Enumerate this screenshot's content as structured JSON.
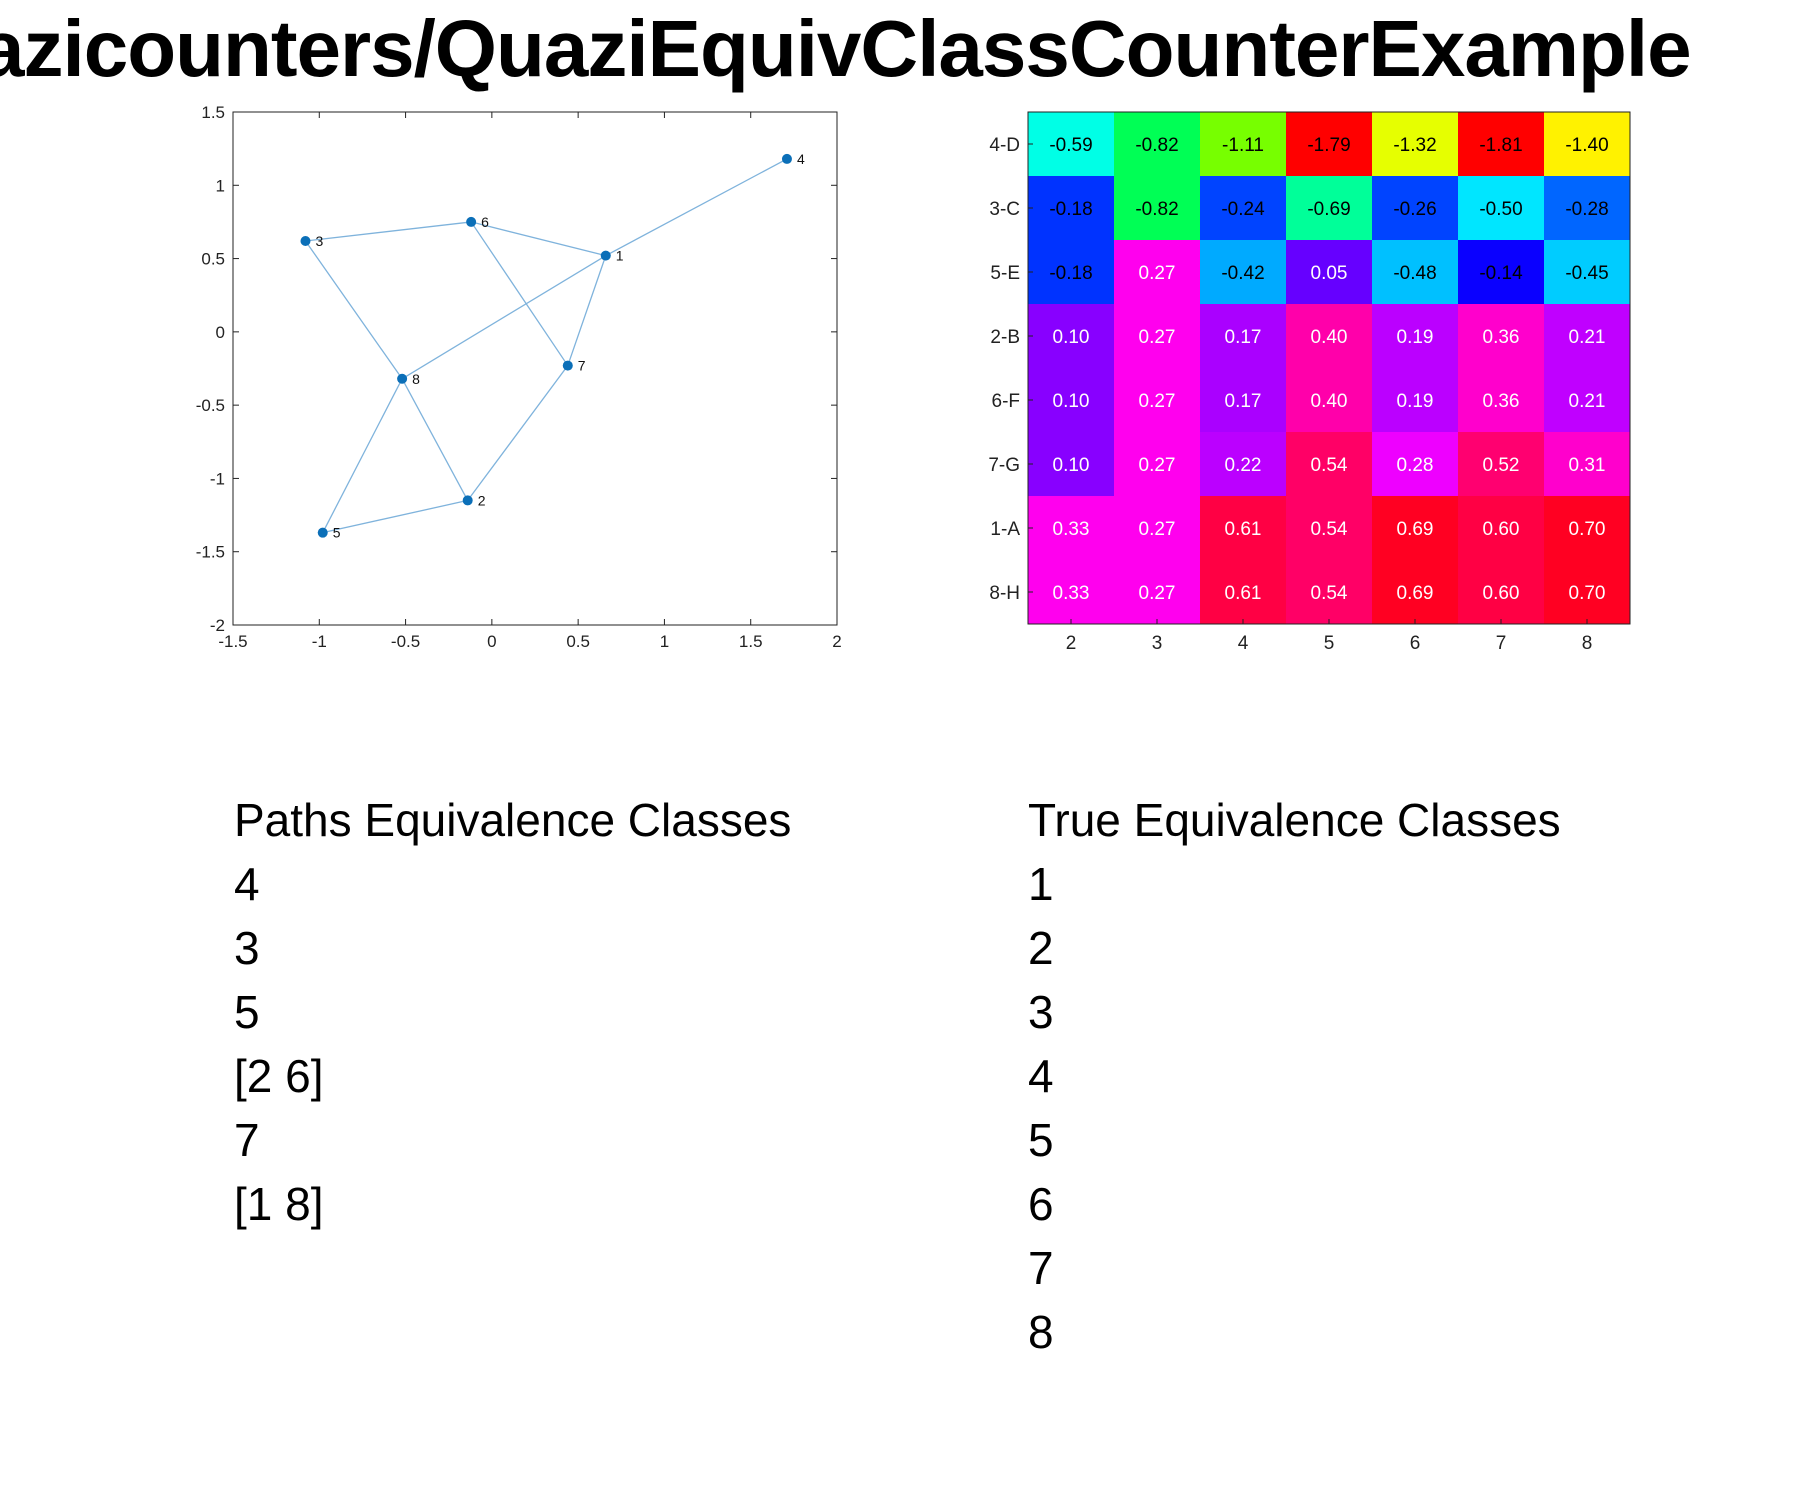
{
  "title": "azicounters/QuaziEquivClassCounterExample",
  "chart_data": [
    {
      "type": "scatter",
      "title": "",
      "xlabel": "",
      "ylabel": "",
      "xlim": [
        -1.5,
        2
      ],
      "ylim": [
        -2,
        1.5
      ],
      "xticks": [
        "-1.5",
        "-1",
        "-0.5",
        "0",
        "0.5",
        "1",
        "1.5",
        "2"
      ],
      "yticks": [
        "-2",
        "-1.5",
        "-1",
        "-0.5",
        "0",
        "0.5",
        "1",
        "1.5"
      ],
      "grid": false,
      "colors": {
        "point": "#0b6fb8",
        "edge": "#7fb3dc",
        "axis": "#222222"
      },
      "nodes": [
        {
          "label": "1",
          "x": 0.66,
          "y": 0.52
        },
        {
          "label": "2",
          "x": -0.14,
          "y": -1.15
        },
        {
          "label": "3",
          "x": -1.08,
          "y": 0.62
        },
        {
          "label": "4",
          "x": 1.71,
          "y": 1.18
        },
        {
          "label": "5",
          "x": -0.98,
          "y": -1.37
        },
        {
          "label": "6",
          "x": -0.12,
          "y": 0.75
        },
        {
          "label": "7",
          "x": 0.44,
          "y": -0.23
        },
        {
          "label": "8",
          "x": -0.52,
          "y": -0.32
        }
      ],
      "edges": [
        [
          "1",
          "4"
        ],
        [
          "1",
          "6"
        ],
        [
          "1",
          "7"
        ],
        [
          "1",
          "8"
        ],
        [
          "3",
          "6"
        ],
        [
          "3",
          "8"
        ],
        [
          "6",
          "7"
        ],
        [
          "7",
          "2"
        ],
        [
          "8",
          "2"
        ],
        [
          "8",
          "5"
        ],
        [
          "5",
          "2"
        ]
      ]
    },
    {
      "type": "heatmap",
      "title": "",
      "xlabel": "",
      "ylabel": "",
      "columns": [
        "2",
        "3",
        "4",
        "5",
        "6",
        "7",
        "8"
      ],
      "rows": [
        "4-D",
        "3-C",
        "5-E",
        "2-B",
        "6-F",
        "7-G",
        "1-A",
        "8-H"
      ],
      "values": [
        [
          "-0.59",
          "-0.82",
          "-1.11",
          "-1.79",
          "-1.32",
          "-1.81",
          "-1.40"
        ],
        [
          "-0.18",
          "-0.82",
          "-0.24",
          "-0.69",
          "-0.26",
          "-0.50",
          "-0.28"
        ],
        [
          "-0.18",
          "0.27",
          "-0.42",
          "0.05",
          "-0.48",
          "-0.14",
          "-0.45"
        ],
        [
          "0.10",
          "0.27",
          "0.17",
          "0.40",
          "0.19",
          "0.36",
          "0.21"
        ],
        [
          "0.10",
          "0.27",
          "0.17",
          "0.40",
          "0.19",
          "0.36",
          "0.21"
        ],
        [
          "0.10",
          "0.27",
          "0.22",
          "0.54",
          "0.28",
          "0.52",
          "0.31"
        ],
        [
          "0.33",
          "0.27",
          "0.61",
          "0.54",
          "0.69",
          "0.60",
          "0.70"
        ],
        [
          "0.33",
          "0.27",
          "0.61",
          "0.54",
          "0.69",
          "0.60",
          "0.70"
        ]
      ],
      "cell_colors": [
        [
          "#00ffe6",
          "#00ff55",
          "#77ff00",
          "#ff0000",
          "#e6ff00",
          "#ff0000",
          "#fff200"
        ],
        [
          "#0033ff",
          "#00ff55",
          "#0044ff",
          "#00ff99",
          "#0044ff",
          "#00e6ff",
          "#0066ff"
        ],
        [
          "#0033ff",
          "#ff00ee",
          "#00aaff",
          "#6600ff",
          "#00c0ff",
          "#0a00ff",
          "#00ccff"
        ],
        [
          "#8800ff",
          "#ff00ee",
          "#aa00ff",
          "#ff00aa",
          "#bb00ff",
          "#ff00cc",
          "#c000ff"
        ],
        [
          "#8800ff",
          "#ff00ee",
          "#aa00ff",
          "#ff00aa",
          "#bb00ff",
          "#ff00cc",
          "#c000ff"
        ],
        [
          "#8800ff",
          "#ff00ee",
          "#bb00ff",
          "#ff0066",
          "#ee00ff",
          "#ff0070",
          "#ff00cc"
        ],
        [
          "#ff00ee",
          "#ff00ee",
          "#ff0044",
          "#ff0066",
          "#ff0022",
          "#ff0044",
          "#ff0022"
        ],
        [
          "#ff00ee",
          "#ff00ee",
          "#ff0044",
          "#ff0066",
          "#ff0022",
          "#ff0044",
          "#ff0022"
        ]
      ],
      "dark_text_cells": [
        [
          true,
          true,
          true,
          true,
          true,
          true,
          true
        ],
        [
          true,
          true,
          true,
          true,
          true,
          true,
          true
        ],
        [
          true,
          false,
          true,
          false,
          true,
          true,
          true
        ],
        [
          false,
          false,
          false,
          false,
          false,
          false,
          false
        ],
        [
          false,
          false,
          false,
          false,
          false,
          false,
          false
        ],
        [
          false,
          false,
          false,
          false,
          false,
          false,
          false
        ],
        [
          false,
          false,
          false,
          false,
          false,
          false,
          false
        ],
        [
          false,
          false,
          false,
          false,
          false,
          false,
          false
        ]
      ]
    }
  ],
  "lists": {
    "paths": {
      "title": "Paths Equivalence Classes",
      "items": [
        "4",
        "3",
        "5",
        "[2 6]",
        "7",
        "[1 8]"
      ]
    },
    "true": {
      "title": "True Equivalence Classes",
      "items": [
        "1",
        "2",
        "3",
        "4",
        "5",
        "6",
        "7",
        "8"
      ]
    }
  }
}
